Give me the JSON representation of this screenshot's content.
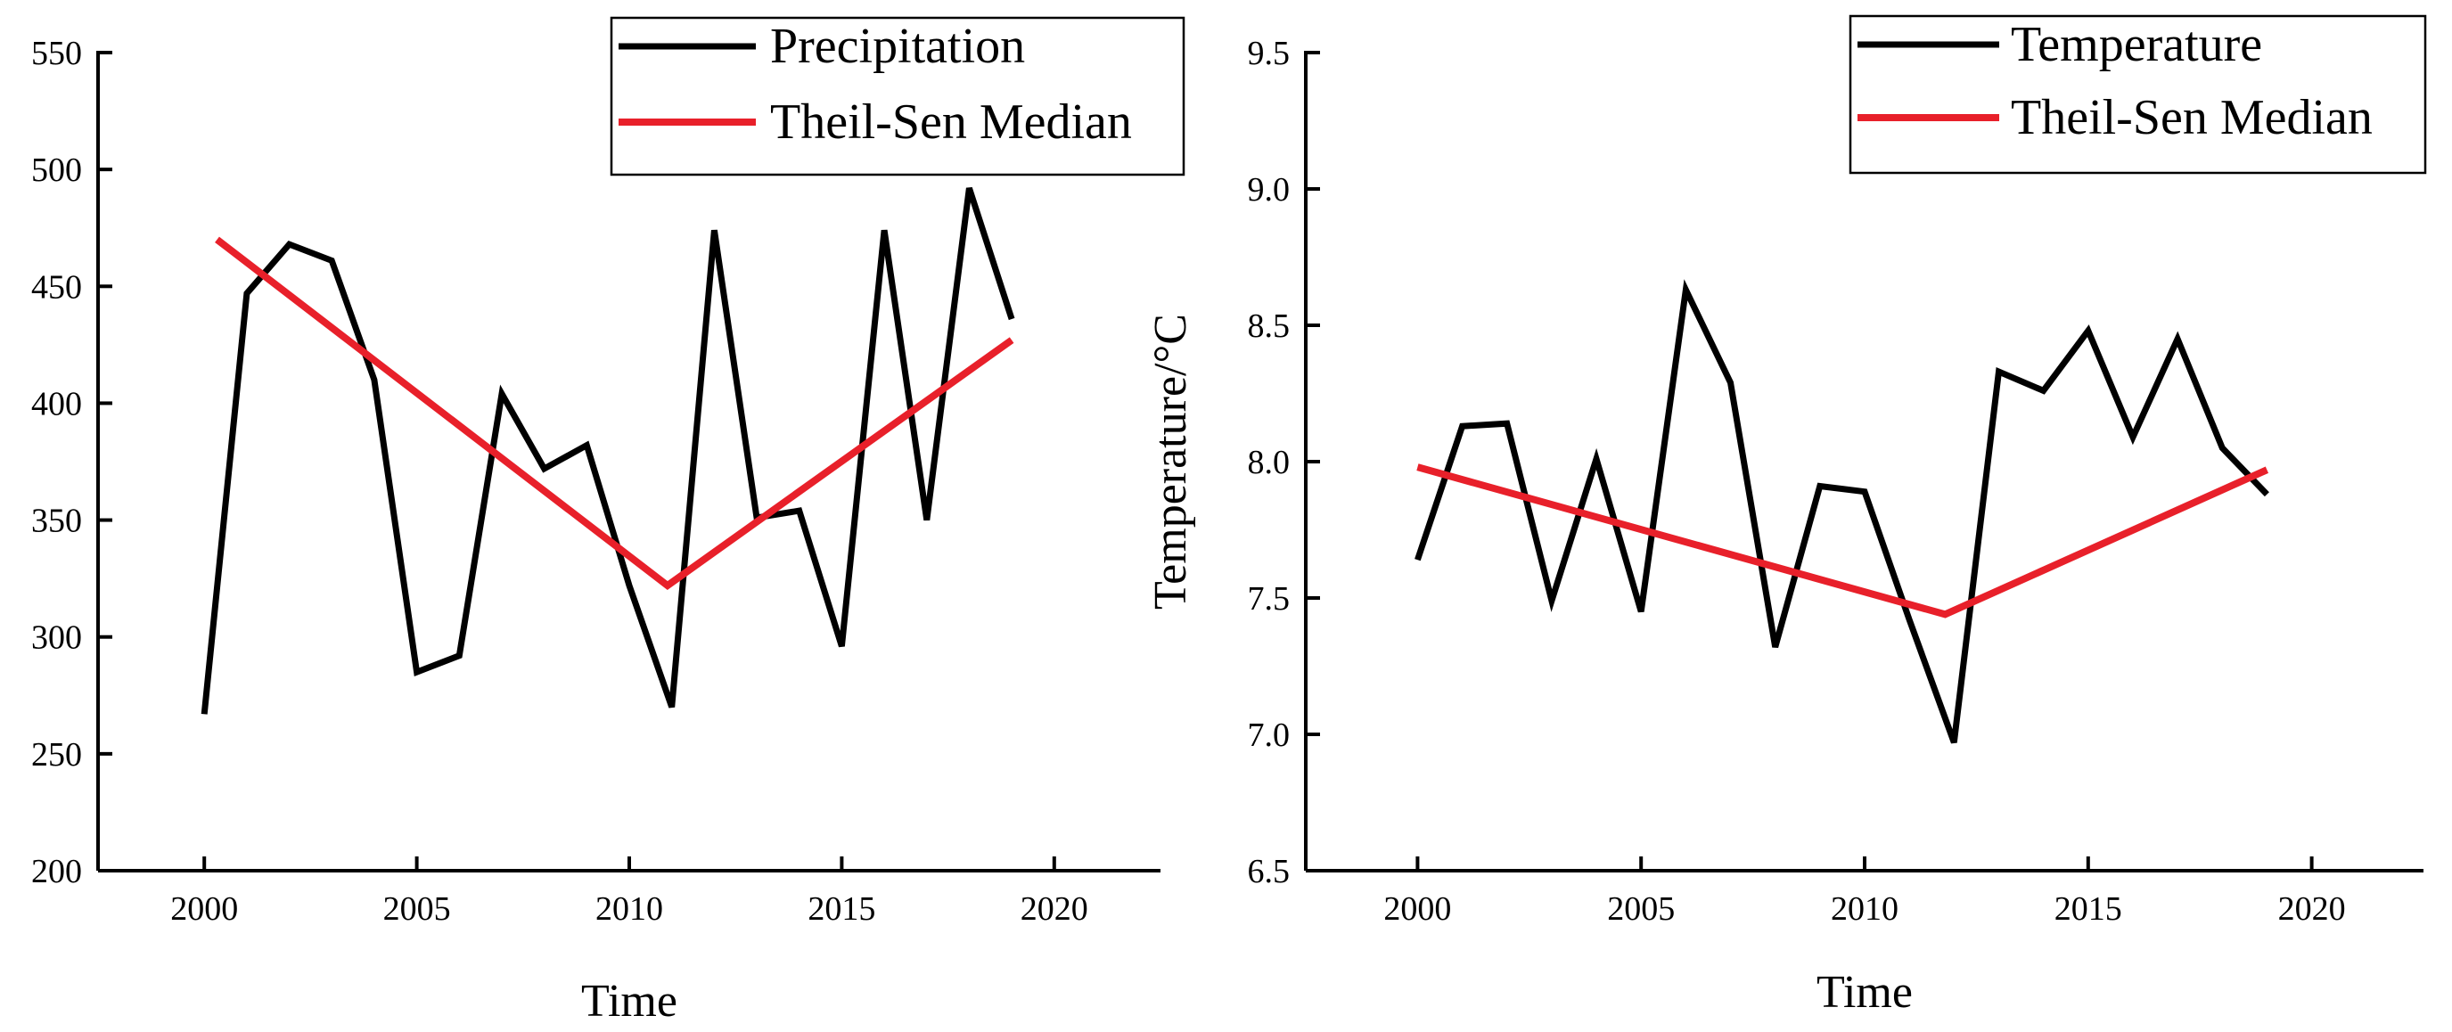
{
  "chart_data": [
    {
      "type": "line",
      "title": "",
      "xlabel": "Time",
      "ylabel": "",
      "xlim": [
        1997.5,
        2022.5
      ],
      "ylim": [
        200,
        550
      ],
      "x_ticks": [
        2000,
        2005,
        2010,
        2015,
        2020
      ],
      "y_ticks": [
        200,
        250,
        300,
        350,
        400,
        450,
        500,
        550
      ],
      "x_tick_labels": [
        "2000",
        "2005",
        "2010",
        "2015",
        "2020"
      ],
      "y_tick_labels": [
        "200",
        "250",
        "300",
        "350",
        "400",
        "450",
        "500",
        "550"
      ],
      "legend_position": "top-right",
      "series": [
        {
          "name": "Precipitation",
          "color": "#000000",
          "x": [
            2000,
            2001,
            2002,
            2003,
            2004,
            2005,
            2006,
            2007,
            2008,
            2009,
            2010,
            2011,
            2012,
            2013,
            2014,
            2015,
            2016,
            2017,
            2018,
            2019
          ],
          "y": [
            267,
            447,
            468,
            461,
            410,
            285,
            292,
            404,
            372,
            382,
            322,
            270,
            474,
            351,
            354,
            296,
            474,
            350,
            492,
            436
          ]
        },
        {
          "name": "Theil-Sen Median",
          "color": "#e8202a",
          "x": [
            2000.3,
            2010.9,
            2019
          ],
          "y": [
            470,
            322,
            427
          ]
        }
      ]
    },
    {
      "type": "line",
      "title": "",
      "xlabel": "Time",
      "ylabel": "Temperature/°C",
      "xlim": [
        1997.5,
        2022.5
      ],
      "ylim": [
        6.5,
        9.5
      ],
      "x_ticks": [
        2000,
        2005,
        2010,
        2015,
        2020
      ],
      "y_ticks": [
        6.5,
        7.0,
        7.5,
        8.0,
        8.5,
        9.0,
        9.5
      ],
      "x_tick_labels": [
        "2000",
        "2005",
        "2010",
        "2015",
        "2020"
      ],
      "y_tick_labels": [
        "6.5",
        "7.0",
        "7.5",
        "8.0",
        "8.5",
        "9.0",
        "9.5"
      ],
      "legend_position": "top-right",
      "series": [
        {
          "name": "Temperature",
          "color": "#000000",
          "x": [
            2000,
            2001,
            2002,
            2003,
            2004,
            2005,
            2006,
            2007,
            2008,
            2009,
            2010,
            2011,
            2012,
            2013,
            2014,
            2015,
            2016,
            2017,
            2018,
            2019
          ],
          "y": [
            7.64,
            8.13,
            8.14,
            7.49,
            8.01,
            7.45,
            8.63,
            8.29,
            7.32,
            7.91,
            7.89,
            7.42,
            6.97,
            8.33,
            8.26,
            8.48,
            8.09,
            8.45,
            8.05,
            7.88
          ]
        },
        {
          "name": "Theil-Sen Median",
          "color": "#e8202a",
          "x": [
            2000,
            2011.8,
            2019
          ],
          "y": [
            7.98,
            7.44,
            7.97
          ]
        }
      ]
    }
  ]
}
